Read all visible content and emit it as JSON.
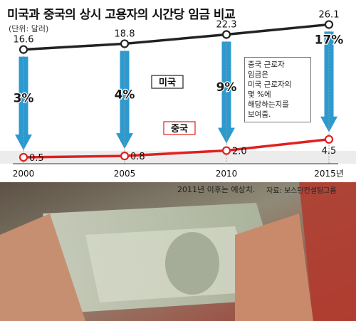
{
  "title": "미국과 중국의 상시 고용자의 시간당 임금 비교",
  "unit": "(단위: 달러)",
  "footnote": "2011년 이후는 예상치.",
  "source": "자료: 보스턴컨설팅그룹",
  "callout": [
    "중국 근로자",
    "임금은",
    "미국 근로자의",
    "몇 %에",
    "해당하는지를",
    "보여줌."
  ],
  "colors": {
    "us_line": "#222222",
    "cn_line": "#e02020",
    "arrow": "#2b9ad0",
    "band": "#ececec"
  },
  "chart_data": {
    "type": "line",
    "categories": [
      "2000",
      "2005",
      "2010",
      "2015년"
    ],
    "series": [
      {
        "name": "미국",
        "values": [
          16.6,
          18.8,
          22.3,
          26.1
        ],
        "labels": [
          "16.6",
          "18.8",
          "22.3",
          "26.1"
        ]
      },
      {
        "name": "중국",
        "values": [
          0.5,
          0.8,
          2.0,
          4.5
        ],
        "labels": [
          "0.5",
          "0.8",
          "2.0",
          "4.5"
        ]
      }
    ],
    "percent_labels": [
      "3%",
      "4%",
      "9%",
      "17%"
    ]
  }
}
